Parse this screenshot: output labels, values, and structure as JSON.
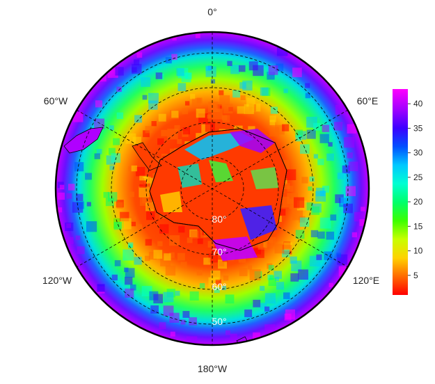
{
  "map": {
    "projection": "south-polar-stereographic",
    "longitude_labels": {
      "top": "0°",
      "upper_left": "60°W",
      "upper_right": "60°E",
      "lower_left": "120°W",
      "lower_right": "120°E",
      "bottom": "180°W"
    },
    "latitude_labels": [
      "80°",
      "70°",
      "60°",
      "50°"
    ],
    "graticule_style": "dashed"
  },
  "colorbar": {
    "ticks": [
      "5",
      "10",
      "15",
      "20",
      "25",
      "30",
      "35",
      "40"
    ],
    "range": [
      1,
      43
    ],
    "palette": [
      "#ff0000",
      "#ff6a00",
      "#ffd200",
      "#c8ff00",
      "#3cff00",
      "#00ff6a",
      "#00ffd2",
      "#00c8ff",
      "#0050ff",
      "#3c00ff",
      "#a000ff",
      "#ff00ff"
    ]
  }
}
